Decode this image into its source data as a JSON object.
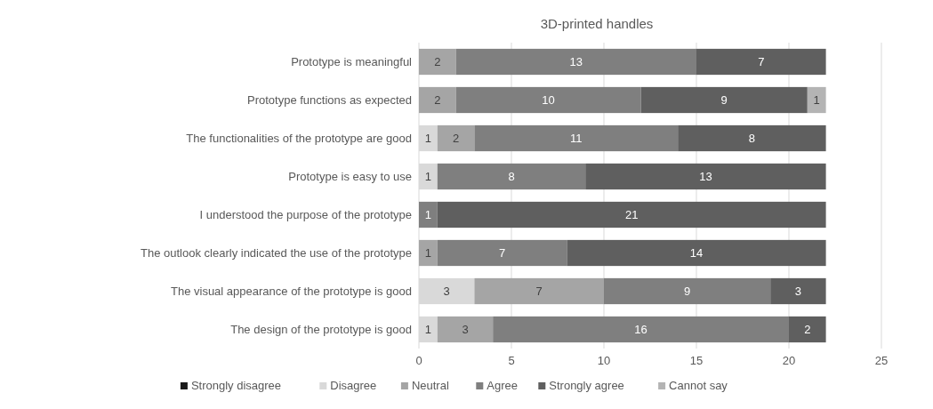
{
  "chart_data": {
    "type": "bar",
    "orientation": "horizontal",
    "stacked": true,
    "title": "3D-printed handles",
    "categories": [
      "Prototype is meaningful",
      "Prototype functions as expected",
      "The functionalities of the prototype are good",
      "Prototype is easy to use",
      "I understood the purpose of the prototype",
      "The outlook clearly indicated the use of the prototype",
      "The visual appearance of the prototype is good",
      "The design of the prototype is good"
    ],
    "series": [
      {
        "name": "Strongly disagree",
        "color": "#1a1a1a",
        "values": [
          null,
          null,
          null,
          null,
          null,
          null,
          null,
          null
        ]
      },
      {
        "name": "Disagree",
        "color": "#d9d9d9",
        "values": [
          null,
          null,
          1,
          1,
          null,
          null,
          3,
          1
        ]
      },
      {
        "name": "Neutral",
        "color": "#a5a5a5",
        "values": [
          2,
          2,
          2,
          null,
          null,
          1,
          7,
          3
        ]
      },
      {
        "name": "Agree",
        "color": "#7f7f7f",
        "values": [
          13,
          10,
          11,
          8,
          1,
          7,
          9,
          16
        ]
      },
      {
        "name": "Strongly agree",
        "color": "#5f5f5f",
        "values": [
          7,
          9,
          8,
          13,
          21,
          14,
          3,
          2
        ]
      },
      {
        "name": "Cannot say",
        "color": "#b4b4b4",
        "values": [
          null,
          1,
          null,
          null,
          null,
          null,
          null,
          null
        ]
      }
    ],
    "xlim": [
      0,
      25
    ],
    "xticks": [
      0,
      5,
      10,
      15,
      20,
      25
    ],
    "grid": "x",
    "legend": "bottom",
    "data_labels": true
  }
}
